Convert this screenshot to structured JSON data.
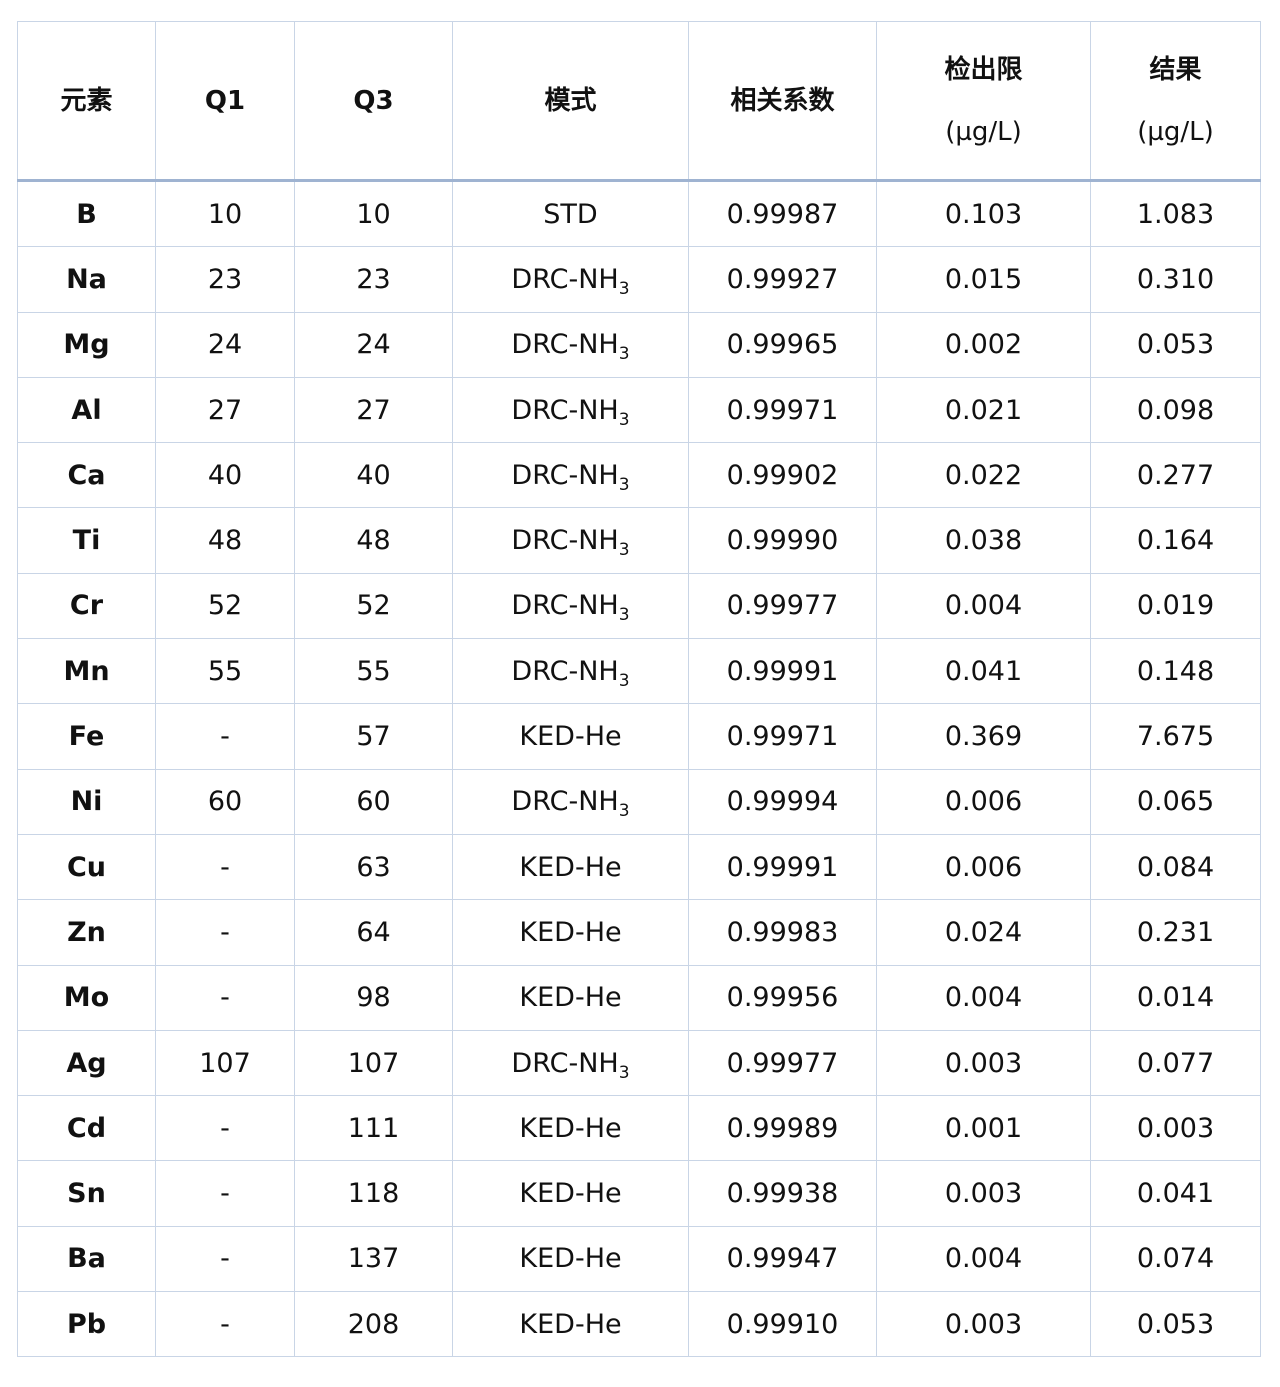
{
  "table": {
    "headers": [
      "元素",
      "Q1",
      "Q3",
      "模式",
      "相关系数",
      "检出限",
      "结果"
    ],
    "header_units": [
      "",
      "",
      "",
      "",
      "",
      "(µg/L)",
      "(µg/L)"
    ],
    "rows": [
      {
        "element": "B",
        "q1": "10",
        "q3": "10",
        "mode": "STD",
        "mode_sub": "",
        "r": "0.99987",
        "lod": "0.103",
        "result": "1.083"
      },
      {
        "element": "Na",
        "q1": "23",
        "q3": "23",
        "mode": "DRC-NH",
        "mode_sub": "3",
        "r": "0.99927",
        "lod": "0.015",
        "result": "0.310"
      },
      {
        "element": "Mg",
        "q1": "24",
        "q3": "24",
        "mode": "DRC-NH",
        "mode_sub": "3",
        "r": "0.99965",
        "lod": "0.002",
        "result": "0.053"
      },
      {
        "element": "Al",
        "q1": "27",
        "q3": "27",
        "mode": "DRC-NH",
        "mode_sub": "3",
        "r": "0.99971",
        "lod": "0.021",
        "result": "0.098"
      },
      {
        "element": "Ca",
        "q1": "40",
        "q3": "40",
        "mode": "DRC-NH",
        "mode_sub": "3",
        "r": "0.99902",
        "lod": "0.022",
        "result": "0.277"
      },
      {
        "element": "Ti",
        "q1": "48",
        "q3": "48",
        "mode": "DRC-NH",
        "mode_sub": "3",
        "r": "0.99990",
        "lod": "0.038",
        "result": "0.164"
      },
      {
        "element": "Cr",
        "q1": "52",
        "q3": "52",
        "mode": "DRC-NH",
        "mode_sub": "3",
        "r": "0.99977",
        "lod": "0.004",
        "result": "0.019"
      },
      {
        "element": "Mn",
        "q1": "55",
        "q3": "55",
        "mode": "DRC-NH",
        "mode_sub": "3",
        "r": "0.99991",
        "lod": "0.041",
        "result": "0.148"
      },
      {
        "element": "Fe",
        "q1": "-",
        "q3": "57",
        "mode": "KED-He",
        "mode_sub": "",
        "r": "0.99971",
        "lod": "0.369",
        "result": "7.675"
      },
      {
        "element": "Ni",
        "q1": "60",
        "q3": "60",
        "mode": "DRC-NH",
        "mode_sub": "3",
        "r": "0.99994",
        "lod": "0.006",
        "result": "0.065"
      },
      {
        "element": "Cu",
        "q1": "-",
        "q3": "63",
        "mode": "KED-He",
        "mode_sub": "",
        "r": "0.99991",
        "lod": "0.006",
        "result": "0.084"
      },
      {
        "element": "Zn",
        "q1": "-",
        "q3": "64",
        "mode": "KED-He",
        "mode_sub": "",
        "r": "0.99983",
        "lod": "0.024",
        "result": "0.231"
      },
      {
        "element": "Mo",
        "q1": "-",
        "q3": "98",
        "mode": "KED-He",
        "mode_sub": "",
        "r": "0.99956",
        "lod": "0.004",
        "result": "0.014"
      },
      {
        "element": "Ag",
        "q1": "107",
        "q3": "107",
        "mode": "DRC-NH",
        "mode_sub": "3",
        "r": "0.99977",
        "lod": "0.003",
        "result": "0.077"
      },
      {
        "element": "Cd",
        "q1": "-",
        "q3": "111",
        "mode": "KED-He",
        "mode_sub": "",
        "r": "0.99989",
        "lod": "0.001",
        "result": "0.003"
      },
      {
        "element": "Sn",
        "q1": "-",
        "q3": "118",
        "mode": "KED-He",
        "mode_sub": "",
        "r": "0.99938",
        "lod": "0.003",
        "result": "0.041"
      },
      {
        "element": "Ba",
        "q1": "-",
        "q3": "137",
        "mode": "KED-He",
        "mode_sub": "",
        "r": "0.99947",
        "lod": "0.004",
        "result": "0.074"
      },
      {
        "element": "Pb",
        "q1": "-",
        "q3": "208",
        "mode": "KED-He",
        "mode_sub": "",
        "r": "0.99910",
        "lod": "0.003",
        "result": "0.053"
      }
    ]
  },
  "colors": {
    "grid": "#c9d5e6",
    "header_rule": "#9fb3d1"
  }
}
